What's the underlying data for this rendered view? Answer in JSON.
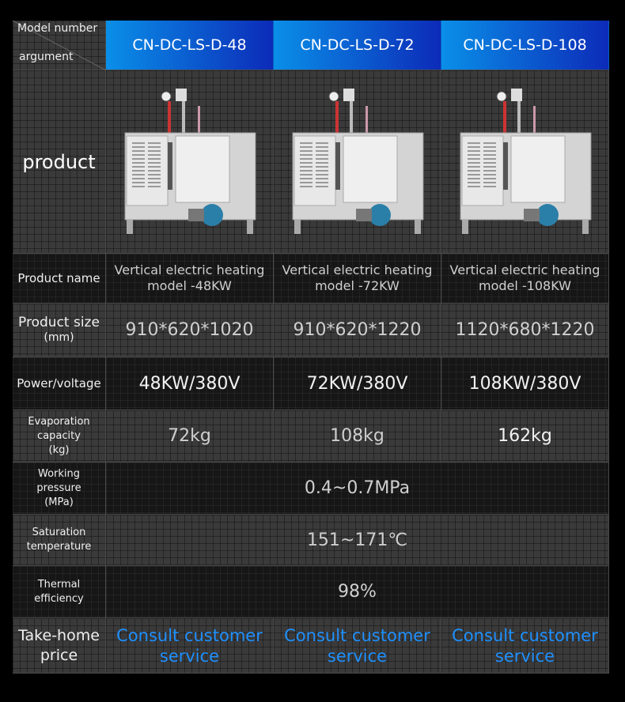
{
  "header": {
    "corner_top": "Model number",
    "corner_bottom": "argument",
    "models": [
      "CN-DC-LS-D-48",
      "CN-DC-LS-D-72",
      "CN-DC-LS-D-108"
    ]
  },
  "rows": {
    "product": {
      "label": "product",
      "image_icon": "steam-generator-image"
    },
    "name": {
      "label": "Product name",
      "values": [
        [
          "Vertical electric heating",
          "model -48KW"
        ],
        [
          "Vertical electric heating",
          "model -72KW"
        ],
        [
          "Vertical electric heating",
          "model -108KW"
        ]
      ]
    },
    "size": {
      "label": "Product size",
      "unit": "(mm)",
      "values": [
        "910*620*1020",
        "910*620*1220",
        "1120*680*1220"
      ]
    },
    "power": {
      "label": "Power/voltage",
      "values": [
        "48KW/380V",
        "72KW/380V",
        "108KW/380V"
      ]
    },
    "evap": {
      "label1": "Evaporation",
      "label2": "capacity",
      "unit": "(kg)",
      "values": [
        "72kg",
        "108kg",
        "162kg"
      ]
    },
    "pressure": {
      "label1": "Working",
      "label2": "pressure",
      "unit": "(MPa)",
      "value": "0.4~0.7MPa"
    },
    "saturation": {
      "label1": "Saturation",
      "label2": "temperature",
      "value": "151~171℃"
    },
    "thermal": {
      "label1": "Thermal",
      "label2": "efficiency",
      "value": "98%"
    },
    "price": {
      "label1": "Take-home",
      "label2": "price",
      "values": [
        [
          "Consult customer",
          "service"
        ],
        [
          "Consult customer",
          "service"
        ],
        [
          "Consult customer",
          "service"
        ]
      ]
    }
  },
  "colors": {
    "header_start": "#0a8fe8",
    "header_end": "#0c2bb8",
    "link": "#1e90ff"
  }
}
